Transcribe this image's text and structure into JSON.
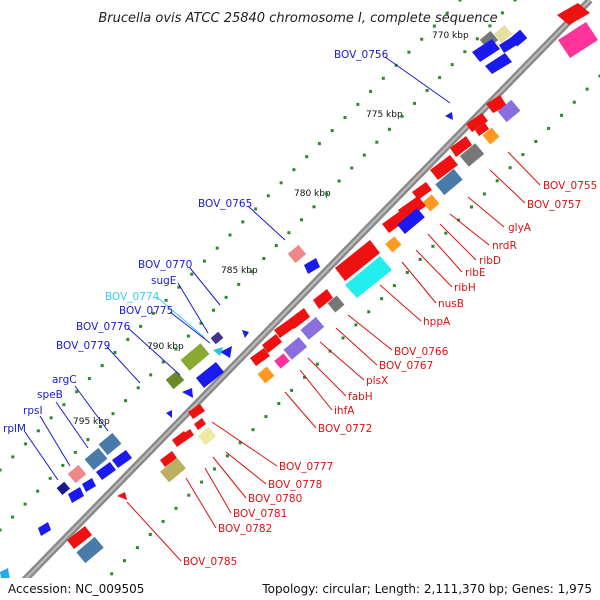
{
  "title": "Brucella ovis ATCC 25840 chromosome I, complete sequence",
  "footer": {
    "accession": "Accession: NC_009505",
    "topology": "Topology: circular; Length: 2,111,370 bp; Genes: 1,975"
  },
  "ticks": [
    "770 kbp",
    "775 kbp",
    "780 kbp",
    "785 kbp",
    "790 kbp",
    "795 kbp"
  ],
  "labels": {
    "BOV_0756": "BOV_0756",
    "BOV_0765": "BOV_0765",
    "BOV_0770": "BOV_0770",
    "sugE": "sugE",
    "BOV_0774": "BOV_0774",
    "BOV_0775": "BOV_0775",
    "BOV_0776": "BOV_0776",
    "BOV_0779": "BOV_0779",
    "argC": "argC",
    "speB": "speB",
    "rpsI": "rpsI",
    "rplM": "rplM",
    "BOV_0755": "BOV_0755",
    "BOV_0757": "BOV_0757",
    "glyA": "glyA",
    "nrdR": "nrdR",
    "ribD": "ribD",
    "ribE": "ribE",
    "ribH": "ribH",
    "nusB": "nusB",
    "hppA": "hppA",
    "BOV_0766": "BOV_0766",
    "BOV_0767": "BOV_0767",
    "plsX": "plsX",
    "fabH": "fabH",
    "ihfA": "ihfA",
    "BOV_0772": "BOV_0772",
    "BOV_0777": "BOV_0777",
    "BOV_0778": "BOV_0778",
    "BOV_0780": "BOV_0780",
    "BOV_0781": "BOV_0781",
    "BOV_0782": "BOV_0782",
    "BOV_0785": "BOV_0785"
  },
  "colors": {
    "backbone": "#888888",
    "cds": "#ee1111",
    "blue": "#1a1aee",
    "label_left": "#1a1ad0",
    "label_right": "#dd1111",
    "cyan_label": "#33ccee",
    "green_dots": "#2a8a2a"
  }
}
